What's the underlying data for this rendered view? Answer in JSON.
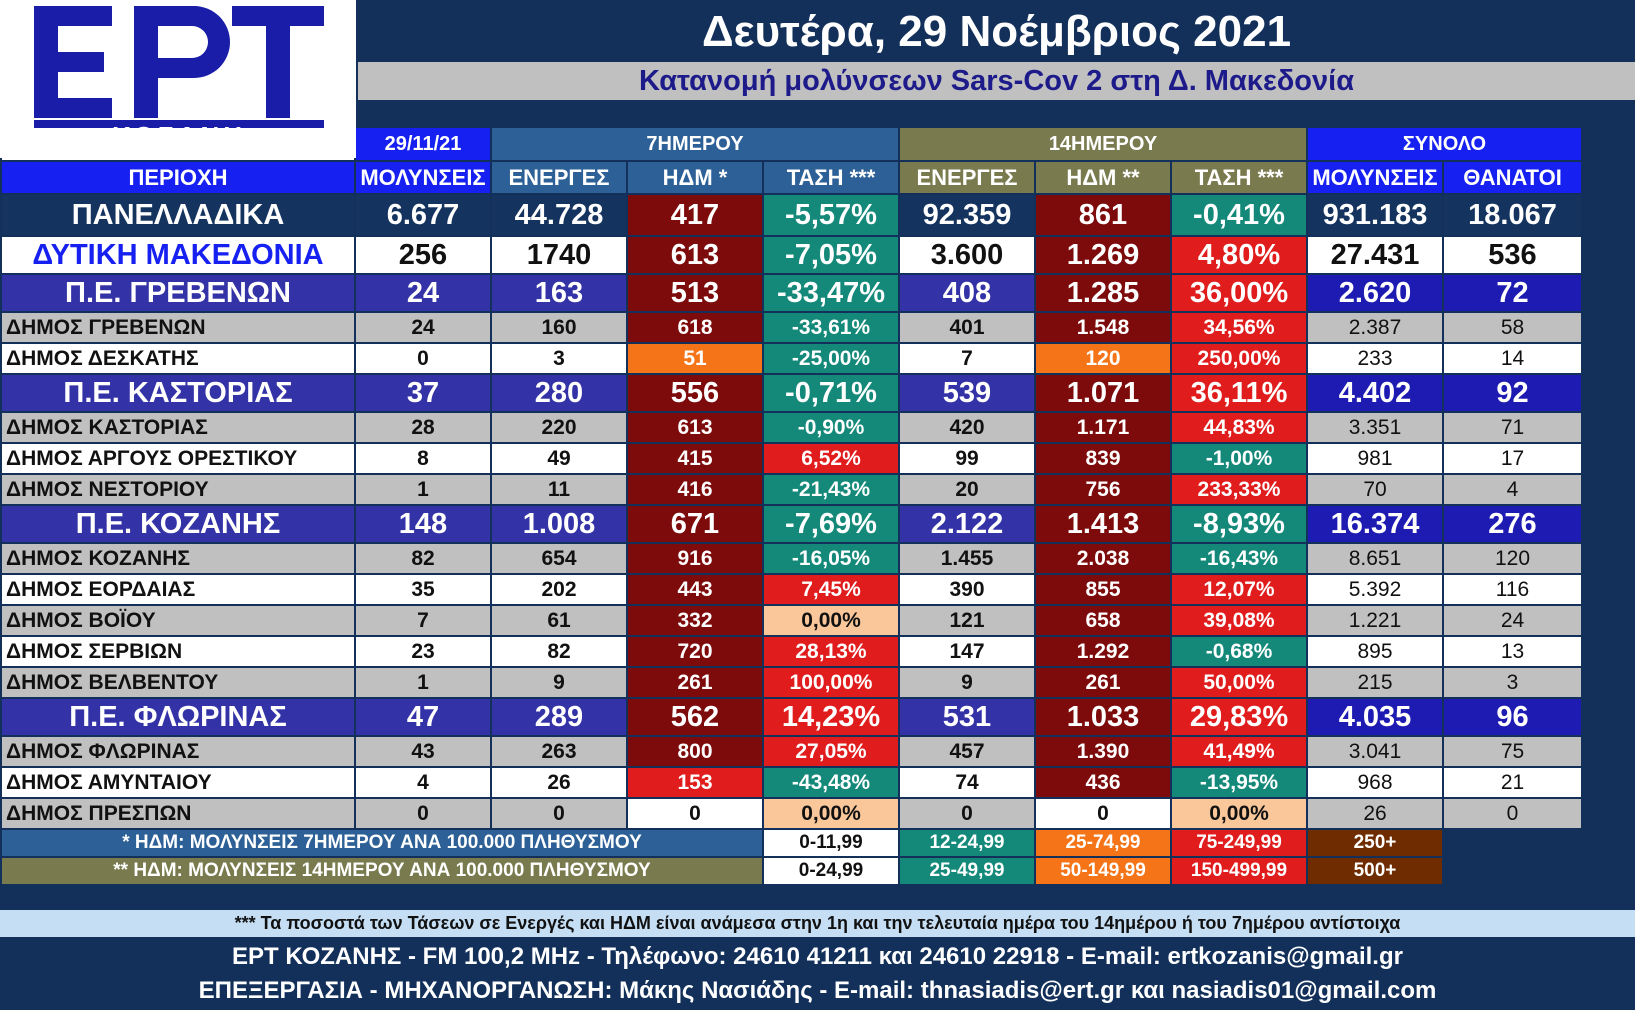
{
  "logo": {
    "letters": "ΕΡΤ",
    "city": "ΚΟΖΑΝΗ"
  },
  "header": {
    "date": "Δευτέρα, 29 Νοέμβριος 2021",
    "subtitle": "Κατανομή μολύνσεων Sars-Cov 2 στη Δ. Μακεδονία"
  },
  "groups": {
    "date": "29/11/21",
    "seven": "7ΗΜΕΡΟΥ",
    "fourteen": "14ΗΜΕΡΟΥ",
    "total": "ΣΥΝΟΛΟ"
  },
  "columns": {
    "area": "ΠΕΡΙΟΧΗ",
    "infections": "ΜΟΛΥΝΣΕΙΣ",
    "active7": "ΕΝΕΡΓΕΣ",
    "hdm7": "ΗΔΜ *",
    "trend7": "ΤΑΣΗ ***",
    "active14": "ΕΝΕΡΓΕΣ",
    "hdm14": "ΗΔΜ **",
    "trend14": "ΤΑΣΗ ***",
    "total_infections": "ΜΟΛΥΝΣΕΙΣ",
    "deaths": "ΘΑΝΑΤΟΙ"
  },
  "rows": [
    {
      "area": "ΠΑΝΕΛΛΑΔΙΚΑ",
      "infections": "6.677",
      "active7": "44.728",
      "hdm7": "417",
      "trend7": "-5,57%",
      "active14": "92.359",
      "hdm14": "861",
      "trend14": "-0,41%",
      "total": "931.183",
      "deaths": "18.067",
      "hdm7_color": "dark",
      "trend7_color": "green",
      "hdm14_color": "dark",
      "trend14_color": "green"
    },
    {
      "area": "ΔΥΤΙΚΗ ΜΑΚΕΔΟΝΙΑ",
      "infections": "256",
      "active7": "1740",
      "hdm7": "613",
      "trend7": "-7,05%",
      "active14": "3.600",
      "hdm14": "1.269",
      "trend14": "4,80%",
      "total": "27.431",
      "deaths": "536",
      "hdm7_color": "dark",
      "trend7_color": "green",
      "hdm14_color": "dark",
      "trend14_color": "red"
    },
    {
      "area": "Π.Ε. ΓΡΕΒΕΝΩΝ",
      "infections": "24",
      "active7": "163",
      "hdm7": "513",
      "trend7": "-33,47%",
      "active14": "408",
      "hdm14": "1.285",
      "trend14": "36,00%",
      "total": "2.620",
      "deaths": "72",
      "hdm7_color": "dark",
      "trend7_color": "green",
      "hdm14_color": "dark",
      "trend14_color": "red"
    },
    {
      "area": "ΔΗΜΟΣ ΓΡΕΒΕΝΩΝ",
      "infections": "24",
      "active7": "160",
      "hdm7": "618",
      "trend7": "-33,61%",
      "active14": "401",
      "hdm14": "1.548",
      "trend14": "34,56%",
      "total": "2.387",
      "deaths": "58",
      "hdm7_color": "dark",
      "trend7_color": "green",
      "hdm14_color": "dark",
      "trend14_color": "red"
    },
    {
      "area": "ΔΗΜΟΣ ΔΕΣΚΑΤΗΣ",
      "infections": "0",
      "active7": "3",
      "hdm7": "51",
      "trend7": "-25,00%",
      "active14": "7",
      "hdm14": "120",
      "trend14": "250,00%",
      "total": "233",
      "deaths": "14",
      "hdm7_color": "orange",
      "trend7_color": "green",
      "hdm14_color": "orange",
      "trend14_color": "red"
    },
    {
      "area": "Π.Ε. ΚΑΣΤΟΡΙΑΣ",
      "infections": "37",
      "active7": "280",
      "hdm7": "556",
      "trend7": "-0,71%",
      "active14": "539",
      "hdm14": "1.071",
      "trend14": "36,11%",
      "total": "4.402",
      "deaths": "92",
      "hdm7_color": "dark",
      "trend7_color": "green",
      "hdm14_color": "dark",
      "trend14_color": "red"
    },
    {
      "area": "ΔΗΜΟΣ ΚΑΣΤΟΡΙΑΣ",
      "infections": "28",
      "active7": "220",
      "hdm7": "613",
      "trend7": "-0,90%",
      "active14": "420",
      "hdm14": "1.171",
      "trend14": "44,83%",
      "total": "3.351",
      "deaths": "71",
      "hdm7_color": "dark",
      "trend7_color": "green",
      "hdm14_color": "dark",
      "trend14_color": "red"
    },
    {
      "area": "ΔΗΜΟΣ ΑΡΓΟΥΣ ΟΡΕΣΤΙΚΟΥ",
      "infections": "8",
      "active7": "49",
      "hdm7": "415",
      "trend7": "6,52%",
      "active14": "99",
      "hdm14": "839",
      "trend14": "-1,00%",
      "total": "981",
      "deaths": "17",
      "hdm7_color": "dark",
      "trend7_color": "red",
      "hdm14_color": "dark",
      "trend14_color": "green"
    },
    {
      "area": "ΔΗΜΟΣ ΝΕΣΤΟΡΙΟΥ",
      "infections": "1",
      "active7": "11",
      "hdm7": "416",
      "trend7": "-21,43%",
      "active14": "20",
      "hdm14": "756",
      "trend14": "233,33%",
      "total": "70",
      "deaths": "4",
      "hdm7_color": "dark",
      "trend7_color": "green",
      "hdm14_color": "dark",
      "trend14_color": "red"
    },
    {
      "area": "Π.Ε. ΚΟΖΑΝΗΣ",
      "infections": "148",
      "active7": "1.008",
      "hdm7": "671",
      "trend7": "-7,69%",
      "active14": "2.122",
      "hdm14": "1.413",
      "trend14": "-8,93%",
      "total": "16.374",
      "deaths": "276",
      "hdm7_color": "dark",
      "trend7_color": "green",
      "hdm14_color": "dark",
      "trend14_color": "green"
    },
    {
      "area": "ΔΗΜΟΣ ΚΟΖΑΝΗΣ",
      "infections": "82",
      "active7": "654",
      "hdm7": "916",
      "trend7": "-16,05%",
      "active14": "1.455",
      "hdm14": "2.038",
      "trend14": "-16,43%",
      "total": "8.651",
      "deaths": "120",
      "hdm7_color": "dark",
      "trend7_color": "green",
      "hdm14_color": "dark",
      "trend14_color": "green"
    },
    {
      "area": "ΔΗΜΟΣ ΕΟΡΔΑΙΑΣ",
      "infections": "35",
      "active7": "202",
      "hdm7": "443",
      "trend7": "7,45%",
      "active14": "390",
      "hdm14": "855",
      "trend14": "12,07%",
      "total": "5.392",
      "deaths": "116",
      "hdm7_color": "dark",
      "trend7_color": "red",
      "hdm14_color": "dark",
      "trend14_color": "red"
    },
    {
      "area": "ΔΗΜΟΣ ΒΟΪΟΥ",
      "infections": "7",
      "active7": "61",
      "hdm7": "332",
      "trend7": "0,00%",
      "active14": "121",
      "hdm14": "658",
      "trend14": "39,08%",
      "total": "1.221",
      "deaths": "24",
      "hdm7_color": "dark",
      "trend7_color": "peach",
      "hdm14_color": "dark",
      "trend14_color": "red"
    },
    {
      "area": "ΔΗΜΟΣ ΣΕΡΒΙΩΝ",
      "infections": "23",
      "active7": "82",
      "hdm7": "720",
      "trend7": "28,13%",
      "active14": "147",
      "hdm14": "1.292",
      "trend14": "-0,68%",
      "total": "895",
      "deaths": "13",
      "hdm7_color": "dark",
      "trend7_color": "red",
      "hdm14_color": "dark",
      "trend14_color": "green"
    },
    {
      "area": "ΔΗΜΟΣ ΒΕΛΒΕΝΤΟΥ",
      "infections": "1",
      "active7": "9",
      "hdm7": "261",
      "trend7": "100,00%",
      "active14": "9",
      "hdm14": "261",
      "trend14": "50,00%",
      "total": "215",
      "deaths": "3",
      "hdm7_color": "dark",
      "trend7_color": "red",
      "hdm14_color": "dark",
      "trend14_color": "red"
    },
    {
      "area": "Π.Ε. ΦΛΩΡΙΝΑΣ",
      "infections": "47",
      "active7": "289",
      "hdm7": "562",
      "trend7": "14,23%",
      "active14": "531",
      "hdm14": "1.033",
      "trend14": "29,83%",
      "total": "4.035",
      "deaths": "96",
      "hdm7_color": "dark",
      "trend7_color": "red",
      "hdm14_color": "dark",
      "trend14_color": "red"
    },
    {
      "area": "ΔΗΜΟΣ ΦΛΩΡΙΝΑΣ",
      "infections": "43",
      "active7": "263",
      "hdm7": "800",
      "trend7": "27,05%",
      "active14": "457",
      "hdm14": "1.390",
      "trend14": "41,49%",
      "total": "3.041",
      "deaths": "75",
      "hdm7_color": "dark",
      "trend7_color": "red",
      "hdm14_color": "dark",
      "trend14_color": "red"
    },
    {
      "area": "ΔΗΜΟΣ ΑΜΥΝΤΑΙΟΥ",
      "infections": "4",
      "active7": "26",
      "hdm7": "153",
      "trend7": "-43,48%",
      "active14": "74",
      "hdm14": "436",
      "trend14": "-13,95%",
      "total": "968",
      "deaths": "21",
      "hdm7_color": "red",
      "trend7_color": "green",
      "hdm14_color": "dark",
      "trend14_color": "green"
    },
    {
      "area": "ΔΗΜΟΣ ΠΡΕΣΠΩΝ",
      "infections": "0",
      "active7": "0",
      "hdm7": "0",
      "trend7": "0,00%",
      "active14": "0",
      "hdm14": "0",
      "trend14": "0,00%",
      "total": "26",
      "deaths": "0",
      "hdm7_color": "white",
      "trend7_color": "peach",
      "hdm14_color": "white",
      "trend14_color": "peach"
    }
  ],
  "legend": {
    "row7_label": "* ΗΔΜ: ΜΟΛΥΝΣΕΙΣ 7ΗΜΕΡΟΥ ΑΝΑ 100.000 ΠΛΗΘΥΣΜΟΥ",
    "row7_ranges": [
      "0-11,99",
      "12-24,99",
      "25-74,99",
      "75-249,99",
      "250+"
    ],
    "row14_label": "** ΗΔΜ: ΜΟΛΥΝΣΕΙΣ 14ΗΜΕΡΟΥ ΑΝΑ 100.000 ΠΛΗΘΥΣΜΟΥ",
    "row14_ranges": [
      "0-24,99",
      "25-49,99",
      "50-149,99",
      "150-499,99",
      "500+"
    ]
  },
  "footnote": "*** Τα ποσοστά των Τάσεων σε Ενεργές και ΗΔΜ είναι ανάμεσα στην 1η και την τελευταία ημέρα του 14ημέρου ή του 7ημέρου αντίστοιχα",
  "contact": {
    "line1": "ΕΡΤ ΚΟΖΑΝΗΣ - FM 100,2 MHz - Τηλέφωνο:  24610 41211 και 24610 22918 - E-mail: ertkozanis@gmail.gr",
    "line2": "ΕΠΕΞΕΡΓΑΣΙΑ  -  ΜΗΧΑΝΟΡΓΑΝΩΣΗ: Μάκης Νασιάδης  -   E-mail: thnasiadis@ert.gr και nasiadis01@gmail.com"
  },
  "colors": {
    "dark": "#7d0b0b",
    "red": "#e01c1c",
    "orange": "#f57418",
    "white": "#ffffff",
    "green": "#14897a",
    "peach": "#f9c79a",
    "brand_blue": "#1620f0",
    "navy": "#12305a"
  }
}
